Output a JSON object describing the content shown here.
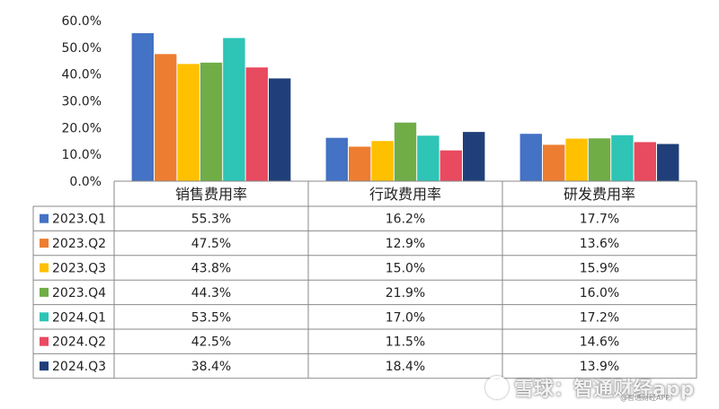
{
  "chart_data": {
    "type": "bar",
    "categories": [
      "销售费用率",
      "行政费用率",
      "研发费用率"
    ],
    "series": [
      {
        "name": "2023.Q1",
        "color": "#4472C4",
        "values": [
          55.3,
          16.2,
          17.7
        ],
        "labels": [
          "55.3%",
          "16.2%",
          "17.7%"
        ]
      },
      {
        "name": "2023.Q2",
        "color": "#ED7D31",
        "values": [
          47.5,
          12.9,
          13.6
        ],
        "labels": [
          "47.5%",
          "12.9%",
          "13.6%"
        ]
      },
      {
        "name": "2023.Q3",
        "color": "#FFC000",
        "values": [
          43.8,
          15.0,
          15.9
        ],
        "labels": [
          "43.8%",
          "15.0%",
          "15.9%"
        ]
      },
      {
        "name": "2023.Q4",
        "color": "#70AD47",
        "values": [
          44.3,
          21.9,
          16.0
        ],
        "labels": [
          "44.3%",
          "21.9%",
          "16.0%"
        ]
      },
      {
        "name": "2024.Q1",
        "color": "#2EC4B6",
        "values": [
          53.5,
          17.0,
          17.2
        ],
        "labels": [
          "53.5%",
          "17.0%",
          "17.2%"
        ]
      },
      {
        "name": "2024.Q2",
        "color": "#E84A5F",
        "values": [
          42.5,
          11.5,
          14.6
        ],
        "labels": [
          "42.5%",
          "11.5%",
          "14.6%"
        ]
      },
      {
        "name": "2024.Q3",
        "color": "#203F7A",
        "values": [
          38.4,
          18.4,
          13.9
        ],
        "labels": [
          "38.4%",
          "18.4%",
          "13.9%"
        ]
      }
    ],
    "yticks": [
      "0.0%",
      "10.0%",
      "20.0%",
      "30.0%",
      "40.0%",
      "50.0%",
      "60.0%"
    ],
    "ylim": [
      0,
      60
    ],
    "grid": false,
    "legend": "data-table-left"
  },
  "watermark": {
    "text": "雪球：智通财经app",
    "subtext": "@智通财经APP"
  }
}
